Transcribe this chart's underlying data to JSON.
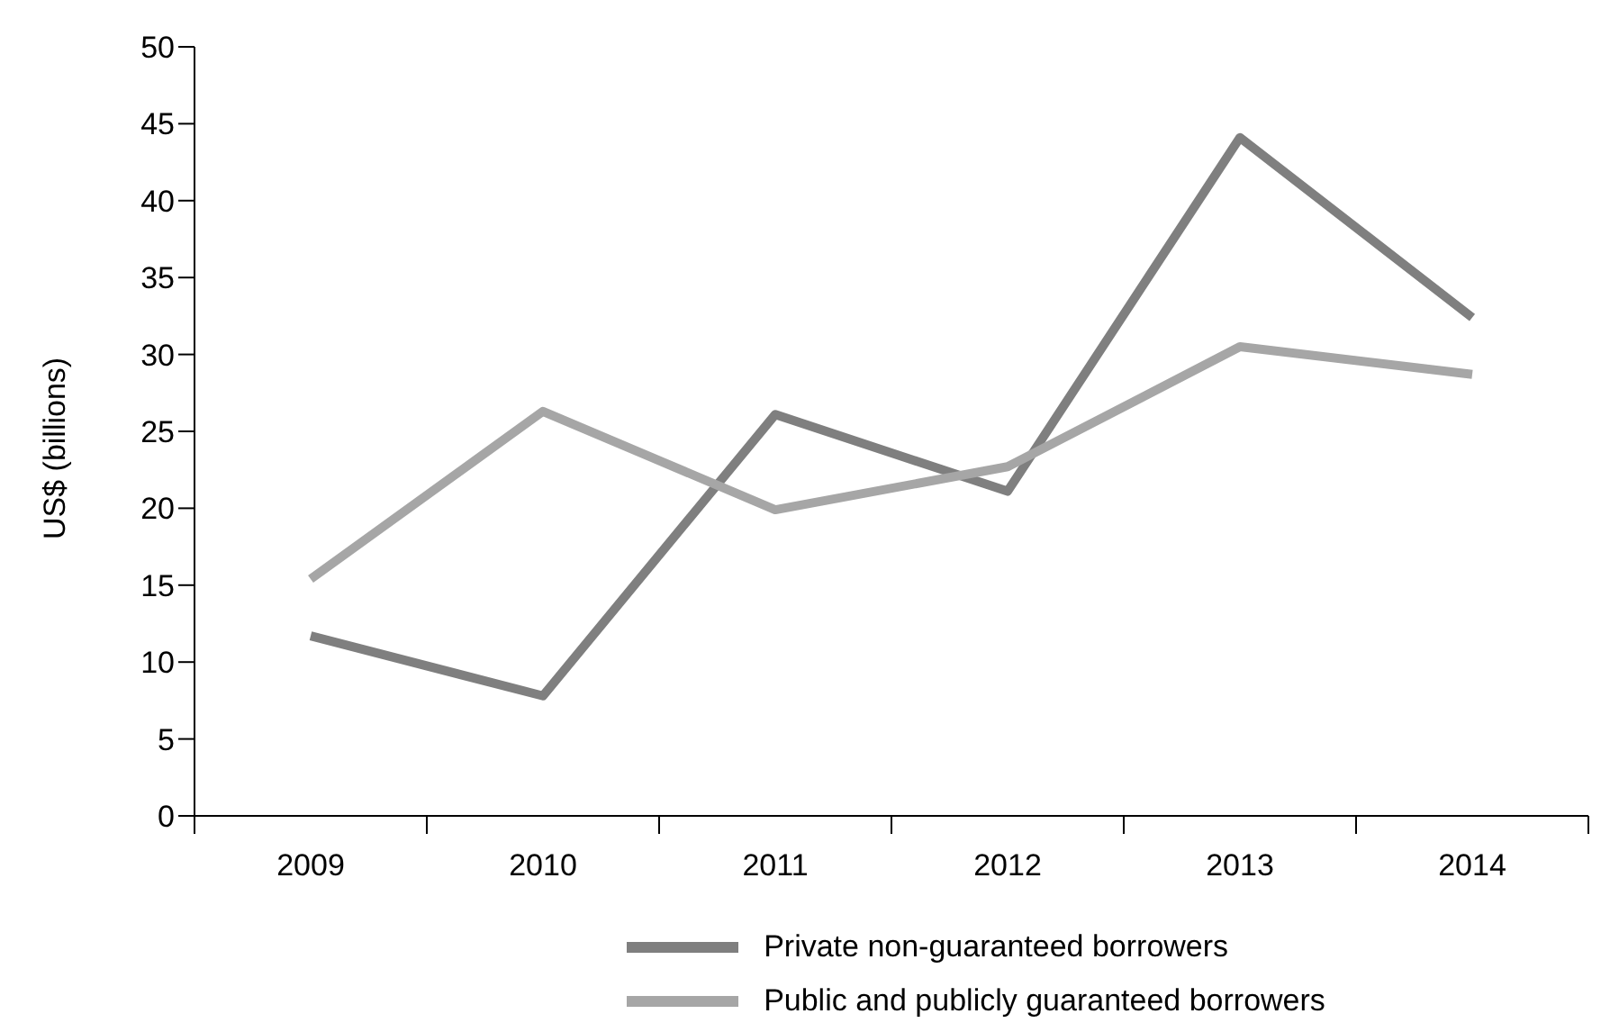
{
  "chart_data": {
    "type": "line",
    "ylabel": "US$ (billions)",
    "categories": [
      "2009",
      "2010",
      "2011",
      "2012",
      "2013",
      "2014"
    ],
    "series": [
      {
        "name": "Private non-guaranteed borrowers",
        "color": "#7f7f7f",
        "values": [
          11.7,
          7.8,
          26.1,
          21.1,
          44.1,
          32.4
        ]
      },
      {
        "name": "Public and publicly guaranteed borrowers",
        "color": "#a6a6a6",
        "values": [
          15.4,
          26.3,
          19.9,
          22.7,
          30.5,
          28.7
        ]
      }
    ],
    "ylim": [
      0,
      50
    ],
    "yticks": [
      0,
      5,
      10,
      15,
      20,
      25,
      30,
      35,
      40,
      45,
      50
    ],
    "grid": false,
    "legend": "bottom",
    "marker": "none",
    "line_style": "solid"
  }
}
